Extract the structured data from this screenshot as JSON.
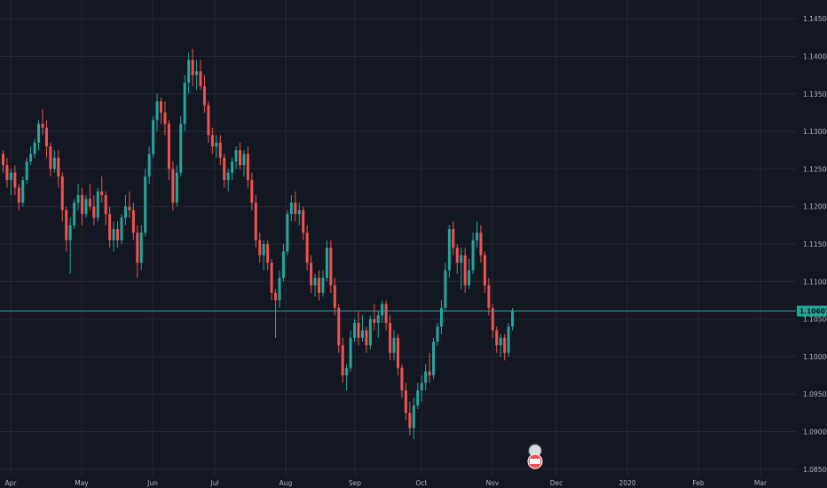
{
  "colors": {
    "background": "#131722",
    "grid": "#252a37",
    "up": "#26a69a",
    "down": "#ef5350",
    "axis_text": "#b2b5be",
    "last_price": "#26a69a"
  },
  "chart_data": {
    "type": "candlestick",
    "title": "",
    "xlabel": "",
    "ylabel": "",
    "grid": true,
    "ylim": [
      1.0825,
      1.1475
    ],
    "y_ticks": [
      "1.14500",
      "1.14000",
      "1.13500",
      "1.13000",
      "1.12500",
      "1.12000",
      "1.11500",
      "1.11000",
      "1.10500",
      "1.10000",
      "1.09500",
      "1.09000",
      "1.08500"
    ],
    "x_ticks": [
      "Apr",
      "May",
      "Jun",
      "Jul",
      "Aug",
      "Sep",
      "Oct",
      "Nov",
      "Dec",
      "2020",
      "Feb",
      "Mar"
    ],
    "last_price": "1.10607",
    "approx_ohlc_estimated": [
      [
        1.127,
        1.1275,
        1.1245,
        1.1255
      ],
      [
        1.1255,
        1.1265,
        1.1225,
        1.1235
      ],
      [
        1.1235,
        1.125,
        1.1215,
        1.1245
      ],
      [
        1.1245,
        1.1255,
        1.1215,
        1.1225
      ],
      [
        1.1225,
        1.123,
        1.1195,
        1.1205
      ],
      [
        1.1205,
        1.124,
        1.12,
        1.1235
      ],
      [
        1.1235,
        1.1265,
        1.123,
        1.126
      ],
      [
        1.126,
        1.128,
        1.1255,
        1.127
      ],
      [
        1.127,
        1.129,
        1.1265,
        1.1285
      ],
      [
        1.1285,
        1.1315,
        1.1275,
        1.131
      ],
      [
        1.131,
        1.133,
        1.1295,
        1.1305
      ],
      [
        1.1305,
        1.1315,
        1.1265,
        1.128
      ],
      [
        1.128,
        1.1285,
        1.124,
        1.125
      ],
      [
        1.125,
        1.1275,
        1.1245,
        1.1265
      ],
      [
        1.1265,
        1.1275,
        1.1225,
        1.124
      ],
      [
        1.124,
        1.1245,
        1.118,
        1.1195
      ],
      [
        1.1195,
        1.12,
        1.114,
        1.1155
      ],
      [
        1.1155,
        1.1185,
        1.111,
        1.1175
      ],
      [
        1.1175,
        1.121,
        1.117,
        1.1205
      ],
      [
        1.1205,
        1.123,
        1.1195,
        1.1215
      ],
      [
        1.1215,
        1.1225,
        1.1175,
        1.119
      ],
      [
        1.119,
        1.1215,
        1.1185,
        1.121
      ],
      [
        1.121,
        1.123,
        1.1195,
        1.12
      ],
      [
        1.12,
        1.1215,
        1.1175,
        1.1185
      ],
      [
        1.1185,
        1.1225,
        1.118,
        1.122
      ],
      [
        1.122,
        1.124,
        1.1205,
        1.1215
      ],
      [
        1.1215,
        1.122,
        1.1175,
        1.119
      ],
      [
        1.119,
        1.12,
        1.1145,
        1.1155
      ],
      [
        1.1155,
        1.118,
        1.114,
        1.117
      ],
      [
        1.117,
        1.118,
        1.1145,
        1.1155
      ],
      [
        1.1155,
        1.119,
        1.115,
        1.1185
      ],
      [
        1.1185,
        1.1215,
        1.1175,
        1.12
      ],
      [
        1.12,
        1.122,
        1.1185,
        1.1195
      ],
      [
        1.1195,
        1.1205,
        1.1155,
        1.1165
      ],
      [
        1.1165,
        1.1175,
        1.1105,
        1.1125
      ],
      [
        1.1125,
        1.1175,
        1.1115,
        1.1165
      ],
      [
        1.1165,
        1.125,
        1.116,
        1.124
      ],
      [
        1.124,
        1.128,
        1.123,
        1.127
      ],
      [
        1.127,
        1.132,
        1.1265,
        1.1315
      ],
      [
        1.1315,
        1.135,
        1.13,
        1.134
      ],
      [
        1.134,
        1.1345,
        1.131,
        1.1325
      ],
      [
        1.1325,
        1.134,
        1.1295,
        1.131
      ],
      [
        1.131,
        1.1315,
        1.1235,
        1.125
      ],
      [
        1.125,
        1.126,
        1.1195,
        1.1205
      ],
      [
        1.1205,
        1.1255,
        1.12,
        1.1245
      ],
      [
        1.1245,
        1.132,
        1.124,
        1.131
      ],
      [
        1.131,
        1.1375,
        1.13,
        1.1365
      ],
      [
        1.1365,
        1.1405,
        1.135,
        1.1395
      ],
      [
        1.1395,
        1.141,
        1.136,
        1.1375
      ],
      [
        1.1375,
        1.1395,
        1.1355,
        1.138
      ],
      [
        1.138,
        1.1395,
        1.1355,
        1.136
      ],
      [
        1.136,
        1.1375,
        1.1325,
        1.1335
      ],
      [
        1.1335,
        1.134,
        1.1285,
        1.1295
      ],
      [
        1.1295,
        1.1305,
        1.127,
        1.128
      ],
      [
        1.128,
        1.1295,
        1.1265,
        1.1285
      ],
      [
        1.1285,
        1.1295,
        1.1255,
        1.1265
      ],
      [
        1.1265,
        1.127,
        1.1225,
        1.1235
      ],
      [
        1.1235,
        1.125,
        1.122,
        1.1245
      ],
      [
        1.1245,
        1.1265,
        1.1235,
        1.126
      ],
      [
        1.126,
        1.128,
        1.125,
        1.1275
      ],
      [
        1.1275,
        1.1285,
        1.125,
        1.1255
      ],
      [
        1.1255,
        1.1275,
        1.124,
        1.127
      ],
      [
        1.127,
        1.128,
        1.1225,
        1.1235
      ],
      [
        1.1235,
        1.1245,
        1.1195,
        1.1205
      ],
      [
        1.1205,
        1.1215,
        1.1145,
        1.1155
      ],
      [
        1.1155,
        1.1165,
        1.1125,
        1.1135
      ],
      [
        1.1135,
        1.1155,
        1.1115,
        1.115
      ],
      [
        1.115,
        1.1155,
        1.1115,
        1.1125
      ],
      [
        1.1125,
        1.113,
        1.1075,
        1.1085
      ],
      [
        1.1085,
        1.109,
        1.1025,
        1.1075
      ],
      [
        1.1075,
        1.1115,
        1.1065,
        1.1105
      ],
      [
        1.1105,
        1.115,
        1.11,
        1.114
      ],
      [
        1.114,
        1.1195,
        1.1135,
        1.119
      ],
      [
        1.119,
        1.1215,
        1.118,
        1.1205
      ],
      [
        1.1205,
        1.122,
        1.118,
        1.119
      ],
      [
        1.119,
        1.1205,
        1.1175,
        1.1195
      ],
      [
        1.1195,
        1.12,
        1.1155,
        1.1165
      ],
      [
        1.1165,
        1.1175,
        1.1115,
        1.1125
      ],
      [
        1.1125,
        1.1135,
        1.1085,
        1.1095
      ],
      [
        1.1095,
        1.111,
        1.108,
        1.1105
      ],
      [
        1.1105,
        1.1115,
        1.1075,
        1.1085
      ],
      [
        1.1085,
        1.1115,
        1.108,
        1.1105
      ],
      [
        1.1105,
        1.1155,
        1.11,
        1.1145
      ],
      [
        1.1145,
        1.1155,
        1.1085,
        1.1095
      ],
      [
        1.1095,
        1.1105,
        1.1055,
        1.1065
      ],
      [
        1.1065,
        1.107,
        1.1005,
        1.1015
      ],
      [
        1.1015,
        1.1025,
        1.0965,
        1.0975
      ],
      [
        1.0975,
        1.099,
        1.0955,
        1.0985
      ],
      [
        1.0985,
        1.1035,
        1.098,
        1.1025
      ],
      [
        1.1025,
        1.105,
        1.102,
        1.1045
      ],
      [
        1.1045,
        1.106,
        1.1015,
        1.1025
      ],
      [
        1.1025,
        1.1055,
        1.102,
        1.1035
      ],
      [
        1.1035,
        1.104,
        1.1005,
        1.1015
      ],
      [
        1.1015,
        1.1055,
        1.101,
        1.105
      ],
      [
        1.105,
        1.107,
        1.1035,
        1.1045
      ],
      [
        1.1045,
        1.106,
        1.1025,
        1.1055
      ],
      [
        1.1055,
        1.1075,
        1.1045,
        1.107
      ],
      [
        1.107,
        1.1075,
        1.1035,
        1.1045
      ],
      [
        1.1045,
        1.1055,
        1.0995,
        1.1005
      ],
      [
        1.1005,
        1.1035,
        1.0995,
        1.1025
      ],
      [
        1.1025,
        1.103,
        1.0975,
        1.0985
      ],
      [
        1.0985,
        1.099,
        1.0945,
        1.0955
      ],
      [
        1.0955,
        1.0965,
        1.0915,
        1.0925
      ],
      [
        1.0925,
        1.094,
        1.0895,
        1.0905
      ],
      [
        1.0905,
        1.0945,
        1.089,
        1.0935
      ],
      [
        1.0935,
        1.0965,
        1.093,
        1.0955
      ],
      [
        1.0955,
        1.0975,
        1.094,
        1.0965
      ],
      [
        1.0965,
        1.099,
        1.0955,
        1.098
      ],
      [
        1.098,
        1.1005,
        1.0965,
        1.0975
      ],
      [
        1.0975,
        1.1025,
        1.097,
        1.102
      ],
      [
        1.102,
        1.1045,
        1.1015,
        1.104
      ],
      [
        1.104,
        1.1075,
        1.103,
        1.1065
      ],
      [
        1.1065,
        1.1125,
        1.106,
        1.1115
      ],
      [
        1.1115,
        1.1175,
        1.1105,
        1.117
      ],
      [
        1.117,
        1.118,
        1.1135,
        1.1145
      ],
      [
        1.1145,
        1.115,
        1.111,
        1.1125
      ],
      [
        1.1125,
        1.1145,
        1.109,
        1.1135
      ],
      [
        1.1135,
        1.1145,
        1.1085,
        1.1095
      ],
      [
        1.1095,
        1.113,
        1.109,
        1.1115
      ],
      [
        1.1115,
        1.1165,
        1.111,
        1.1155
      ],
      [
        1.1155,
        1.118,
        1.1145,
        1.1165
      ],
      [
        1.1165,
        1.1175,
        1.1125,
        1.1135
      ],
      [
        1.1135,
        1.114,
        1.1085,
        1.1095
      ],
      [
        1.1095,
        1.1105,
        1.1055,
        1.1065
      ],
      [
        1.1065,
        1.107,
        1.1025,
        1.1035
      ],
      [
        1.1035,
        1.104,
        1.1005,
        1.1015
      ],
      [
        1.1015,
        1.103,
        1.1,
        1.1025
      ],
      [
        1.1025,
        1.103,
        1.0995,
        1.1005
      ],
      [
        1.1005,
        1.1045,
        1.1,
        1.104
      ],
      [
        1.104,
        1.1065,
        1.1035,
        1.1061
      ]
    ]
  },
  "event_marker": {
    "name": "event-flag-icon"
  }
}
